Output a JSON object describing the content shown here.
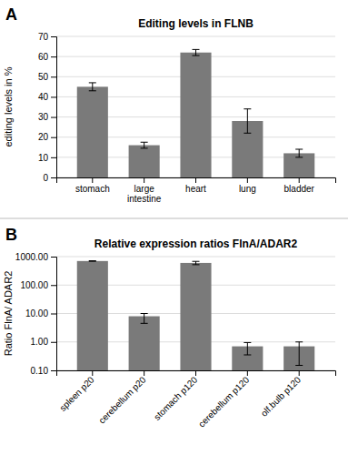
{
  "chart_data": [
    {
      "type": "bar",
      "title": "Editing levels in FLNB",
      "ylabel": "editing levels in %",
      "annotation": "A",
      "categories": [
        "stomach",
        "large\nintestine",
        "heart",
        "lung",
        "bladder"
      ],
      "values": [
        45,
        16,
        62,
        28,
        12
      ],
      "errors": [
        2,
        1.5,
        1.5,
        6,
        2
      ],
      "color": "#7a7a7a",
      "ylim": [
        0,
        70
      ],
      "yticks": [
        0,
        10,
        20,
        30,
        40,
        50,
        60,
        70
      ],
      "grid": true
    },
    {
      "type": "bar",
      "title": "Relative expression ratios FlnA/ADAR2",
      "ylabel": "Ratio FlnA/ ADAR2",
      "annotation": "B",
      "categories": [
        "spleen p20",
        "cerebellum p20",
        "stomach p120",
        "cerebellum p120",
        "olf.bulb p120"
      ],
      "values": [
        700,
        8,
        600,
        0.7,
        0.7
      ],
      "errors_upper": [
        15,
        2,
        80,
        0.25,
        0.3
      ],
      "errors_lower": [
        15,
        3.5,
        80,
        0.35,
        0.55
      ],
      "color": "#7a7a7a",
      "log": "y",
      "ylim": [
        0.1,
        1000
      ],
      "yticks": [
        {
          "value": 0.1,
          "label": "0.10"
        },
        {
          "value": 1.0,
          "label": "1.00"
        },
        {
          "value": 10.0,
          "label": "10.00"
        },
        {
          "value": 100.0,
          "label": "100.00"
        },
        {
          "value": 1000.0,
          "label": "1000.00"
        }
      ],
      "grid": true
    }
  ]
}
